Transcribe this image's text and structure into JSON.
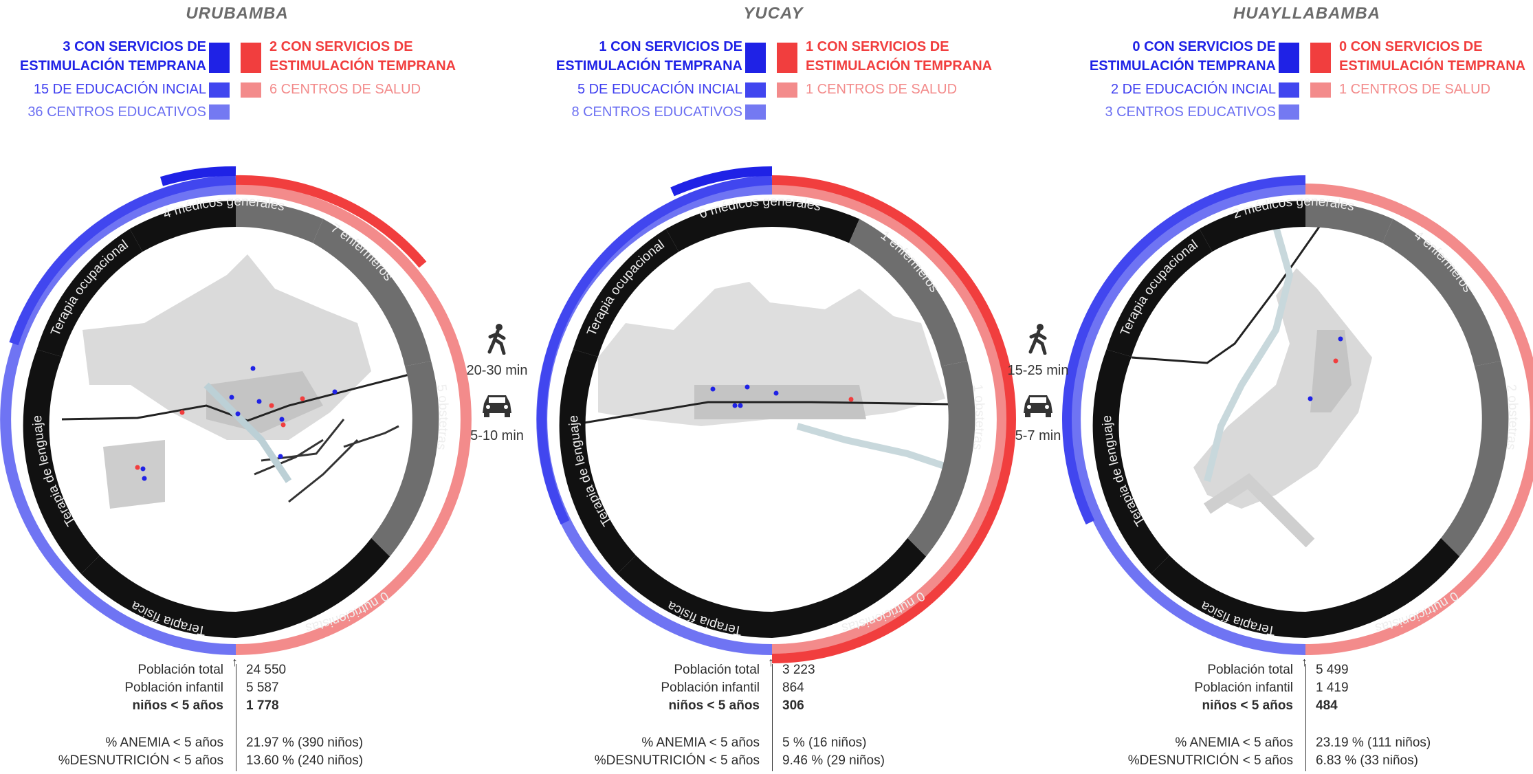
{
  "panels": [
    {
      "title": "URUBAMBA",
      "legend": {
        "blue_main": "3 CON SERVICIOS DE ESTIMULACIÓN TEMPRANA",
        "blue_mid": "15 DE EDUCACIÓN INCIAL",
        "blue_light": "36 CENTROS EDUCATIVOS",
        "red_main": "2 CON SERVICIOS DE ESTIMULACIÓN TEMPRANA",
        "red_light": "6 CENTROS DE SALUD"
      },
      "segments": {
        "top": "4 médicos generales",
        "upper_right": "7 enfermeros",
        "lower_right": "5 obstetras",
        "bottom_right": "0 nutricionistas",
        "bottom_left": "Terapia física",
        "lower_left": "Terapia de lenguaje",
        "upper_left": "Terapia ocupacional"
      },
      "stats": {
        "total_label": "Población total",
        "total_value": "24 550",
        "infant_label": "Población infantil",
        "infant_value": "5 587",
        "under5_label": "niños < 5 años",
        "under5_value": "1 778",
        "anemia_label": "% ANEMIA < 5 años",
        "anemia_value": "21.97 % (390 niños)",
        "malnut_label": "%DESNUTRICIÓN < 5 años",
        "malnut_value": "13.60 % (240 niños)"
      }
    },
    {
      "title": "YUCAY",
      "legend": {
        "blue_main": "1 CON SERVICIOS DE ESTIMULACIÓN TEMPRANA",
        "blue_mid": "5 DE EDUCACIÓN INCIAL",
        "blue_light": "8 CENTROS EDUCATIVOS",
        "red_main": "1 CON SERVICIOS DE ESTIMULACIÓN TEMPRANA",
        "red_light": "1 CENTROS DE SALUD"
      },
      "segments": {
        "top": "0 médicos generales",
        "upper_right": "1 enfermeros",
        "lower_right": "1 obstetras",
        "bottom_right": "0 nutricionistas",
        "bottom_left": "Terapia física",
        "lower_left": "Terapia de lenguaje",
        "upper_left": "Terapia ocupacional"
      },
      "stats": {
        "total_label": "Población total",
        "total_value": "3 223",
        "infant_label": "Población infantil",
        "infant_value": "864",
        "under5_label": "niños < 5 años",
        "under5_value": "306",
        "anemia_label": "% ANEMIA < 5 años",
        "anemia_value": "5 % (16 niños)",
        "malnut_label": "%DESNUTRICIÓN < 5 años",
        "malnut_value": "9.46 % (29 niños)"
      }
    },
    {
      "title": "HUAYLLABAMBA",
      "legend": {
        "blue_main": "0 CON SERVICIOS DE ESTIMULACIÓN TEMPRANA",
        "blue_mid": "2 DE EDUCACIÓN INCIAL",
        "blue_light": "3 CENTROS EDUCATIVOS",
        "red_main": "0 CON SERVICIOS DE ESTIMULACIÓN TEMPRANA",
        "red_light": "1 CENTROS DE SALUD"
      },
      "segments": {
        "top": "2 médicos generales",
        "upper_right": "4 enfermeros",
        "lower_right": "2 obstetras",
        "bottom_right": "0 nutricionistas",
        "bottom_left": "Terapia física",
        "lower_left": "Terapia de lenguaje",
        "upper_left": "Terapia ocupacional"
      },
      "stats": {
        "total_label": "Población total",
        "total_value": "5 499",
        "infant_label": "Población infantil",
        "infant_value": "1 419",
        "under5_label": "niños < 5 años",
        "under5_value": "484",
        "anemia_label": "% ANEMIA < 5 años",
        "anemia_value": "23.19 % (111 niños)",
        "malnut_label": "%DESNUTRICIÓN < 5 años",
        "malnut_value": "6.83 % (33 niños)"
      }
    }
  ],
  "travel": [
    {
      "walk_icon": "walking-person-icon",
      "walk": "20-30 min",
      "car_icon": "car-icon",
      "car": "5-10 min"
    },
    {
      "walk_icon": "walking-person-icon",
      "walk": "15-25 min",
      "car_icon": "car-icon",
      "car": "5-7 min"
    }
  ],
  "colors": {
    "blue_strong": "#1f22e6",
    "blue": "#3f3ff0",
    "blue_light": "#6b6ff2",
    "red_strong": "#f13e3e",
    "red_light": "#f38b8b",
    "ring_black": "#111111",
    "ring_gray": "#6e6e6e",
    "map_gray": "#d7d7d7"
  }
}
